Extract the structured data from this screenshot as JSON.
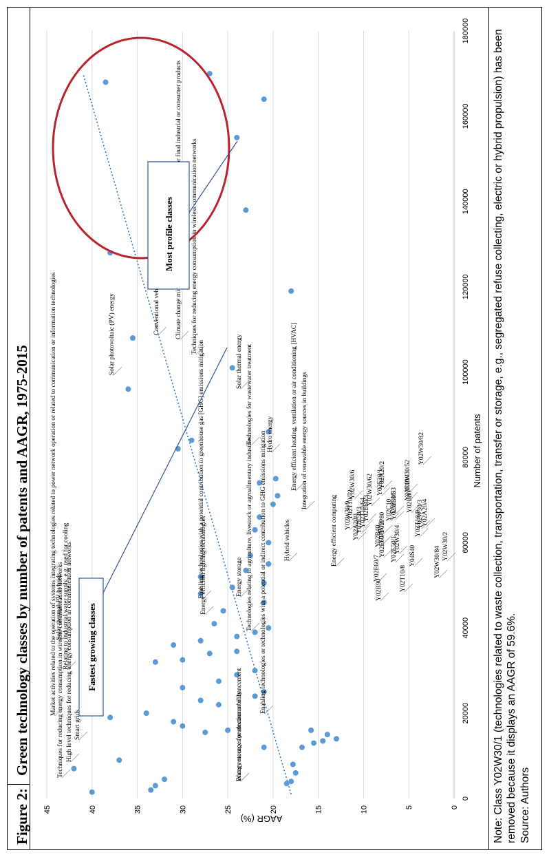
{
  "figure": {
    "number": "Figure 2:",
    "title": "Green technology classes by number of patents and AAGR, 1975-2015",
    "note": "Note: Class Y02W30/1 (technologies related to waste collection, transportation, transfer or storage, e.g., segregated refuse collecting, electric or hybrid propulsion) has been removed because it displays an AAGR of 59.6%.",
    "source": "Source: Authors"
  },
  "chart_data": {
    "type": "scatter",
    "xlabel": "Number of patents",
    "ylabel": "AAGR (%)",
    "xlim": [
      0,
      180000
    ],
    "ylim": [
      0,
      45
    ],
    "xticks": [
      0,
      20000,
      40000,
      60000,
      80000,
      100000,
      120000,
      140000,
      160000,
      180000
    ],
    "yticks": [
      0,
      5,
      10,
      15,
      20,
      25,
      30,
      35,
      40,
      45
    ],
    "grid": "horizontal",
    "color": "#5b9bd5",
    "trendline": {
      "x0": 1000,
      "y0": 18,
      "x1": 170000,
      "y1": 41
    },
    "points": [
      {
        "x": 1500,
        "y": 40
      },
      {
        "x": 7000,
        "y": 42
      },
      {
        "x": 9000,
        "y": 37
      },
      {
        "x": 2000,
        "y": 33.5
      },
      {
        "x": 3000,
        "y": 33
      },
      {
        "x": 4500,
        "y": 32
      },
      {
        "x": 3500,
        "y": 18.5
      },
      {
        "x": 4000,
        "y": 18
      },
      {
        "x": 6000,
        "y": 17.5
      },
      {
        "x": 8000,
        "y": 17.8
      },
      {
        "x": 12000,
        "y": 16.8
      },
      {
        "x": 13000,
        "y": 15.5
      },
      {
        "x": 14000,
        "y": 13
      },
      {
        "x": 13500,
        "y": 14.5
      },
      {
        "x": 15000,
        "y": 14
      },
      {
        "x": 16000,
        "y": 15.8
      },
      {
        "x": 12000,
        "y": 21
      },
      {
        "x": 15500,
        "y": 27.5
      },
      {
        "x": 16000,
        "y": 25
      },
      {
        "x": 17000,
        "y": 30
      },
      {
        "x": 18000,
        "y": 31
      },
      {
        "x": 19000,
        "y": 38
      },
      {
        "x": 20000,
        "y": 34
      },
      {
        "x": 22000,
        "y": 26
      },
      {
        "x": 23000,
        "y": 28
      },
      {
        "x": 24000,
        "y": 22
      },
      {
        "x": 25000,
        "y": 21
      },
      {
        "x": 26000,
        "y": 30
      },
      {
        "x": 27500,
        "y": 26
      },
      {
        "x": 29000,
        "y": 24
      },
      {
        "x": 30000,
        "y": 22
      },
      {
        "x": 32000,
        "y": 33
      },
      {
        "x": 32500,
        "y": 30
      },
      {
        "x": 34000,
        "y": 27
      },
      {
        "x": 34500,
        "y": 24
      },
      {
        "x": 36000,
        "y": 31
      },
      {
        "x": 37000,
        "y": 28
      },
      {
        "x": 38000,
        "y": 24
      },
      {
        "x": 39000,
        "y": 22
      },
      {
        "x": 40000,
        "y": 20.5
      },
      {
        "x": 41000,
        "y": 26.5
      },
      {
        "x": 44000,
        "y": 25.5
      },
      {
        "x": 46000,
        "y": 21
      },
      {
        "x": 48000,
        "y": 28
      },
      {
        "x": 49500,
        "y": 24.5
      },
      {
        "x": 50500,
        "y": 21
      },
      {
        "x": 52000,
        "y": 28
      },
      {
        "x": 53500,
        "y": 23
      },
      {
        "x": 55000,
        "y": 20.5
      },
      {
        "x": 57000,
        "y": 22.5
      },
      {
        "x": 60000,
        "y": 20.5
      },
      {
        "x": 63000,
        "y": 22
      },
      {
        "x": 66000,
        "y": 21.5
      },
      {
        "x": 69000,
        "y": 20
      },
      {
        "x": 71000,
        "y": 19.5
      },
      {
        "x": 74000,
        "y": 21.5
      },
      {
        "x": 75000,
        "y": 19.7
      },
      {
        "x": 82000,
        "y": 30.5
      },
      {
        "x": 84000,
        "y": 29
      },
      {
        "x": 86000,
        "y": 20.5
      },
      {
        "x": 96000,
        "y": 36
      },
      {
        "x": 101000,
        "y": 24.5
      },
      {
        "x": 108000,
        "y": 35.5
      },
      {
        "x": 119000,
        "y": 18
      },
      {
        "x": 128000,
        "y": 38
      },
      {
        "x": 138000,
        "y": 23
      },
      {
        "x": 155000,
        "y": 24
      },
      {
        "x": 164000,
        "y": 21
      },
      {
        "x": 168000,
        "y": 38.5
      },
      {
        "x": 170000,
        "y": 27
      }
    ],
    "labels": [
      {
        "text": "Techniques for reducing energy consumption in wireline communication networks"
      },
      {
        "text": "High level techniques for reducing energy consumption in communication networks"
      },
      {
        "text": "Smart grids"
      },
      {
        "text": "Market activities related to the operation of systems integrating technologies related to power network operation or related to communication or information technologies"
      },
      {
        "text": "Relating to industrial water supply, e.g. used for cooling"
      },
      {
        "text": "Solar thermal-PV hybrids"
      },
      {
        "text": "Y02W30/2"
      },
      {
        "text": "Y02W30/84"
      },
      {
        "text": "Y02T10/8"
      },
      {
        "text": "Y02T10/0"
      },
      {
        "text": "Y02W30/3"
      },
      {
        "text": "Y02W30/52"
      },
      {
        "text": "Y02W30/82"
      },
      {
        "text": "Y02A20/4"
      },
      {
        "text": "Y04S40"
      },
      {
        "text": "Y02B80"
      },
      {
        "text": "Y02E10/1"
      },
      {
        "text": "Y02E60/7"
      },
      {
        "text": "Y02B90"
      },
      {
        "text": "Y02B40"
      },
      {
        "text": "Y02E60/5"
      },
      {
        "text": "Y02P80"
      },
      {
        "text": "Y02E50/1"
      },
      {
        "text": "Y02W30/4"
      },
      {
        "text": "Y02B70"
      },
      {
        "text": "Y02C10"
      },
      {
        "text": "Y02E10/3"
      },
      {
        "text": "Y02W30/5"
      },
      {
        "text": "Y02A20/2"
      },
      {
        "text": "Y02E20/1"
      },
      {
        "text": "Y02E60/3"
      },
      {
        "text": "Y02T10/64"
      },
      {
        "text": "Y02E50/3"
      },
      {
        "text": "Y02A20/1"
      },
      {
        "text": "Y02T10/72"
      },
      {
        "text": "Y02W30/62"
      },
      {
        "text": "Y02W30/9"
      },
      {
        "text": "Y02W30/6"
      },
      {
        "text": "Hybrid vehicles"
      },
      {
        "text": "Energy efficient computing"
      },
      {
        "text": "Hydro energy"
      },
      {
        "text": "Energy efficient heating, ventilation or air conditioning [HVAC]"
      },
      {
        "text": "Integration of renewable energy sources in buildings"
      },
      {
        "text": "Enabling technologies or technologies with a potential or indirect contribution to GHG emissions mitigation"
      },
      {
        "text": "Technologies relating to agriculture, livestock or agroalimentary industries"
      },
      {
        "text": "Energy storage"
      },
      {
        "text": "Energy efficient lighting technologies"
      },
      {
        "text": "Enabling technologies with a potential contribution to greenhouse gas [GHG] emissions mitigation"
      },
      {
        "text": "Technologies for wastewater treatment"
      },
      {
        "text": "Solar thermal energy"
      },
      {
        "text": "Techniques for reducing energy consumption in wireless communication networks"
      },
      {
        "text": "Conventional vehicles (ICE)"
      },
      {
        "text": "Climate change mitigation technologies in the production process for final industrial or consumer products"
      },
      {
        "text": "Solar photovoltaic (PV) energy"
      },
      {
        "text": "Water resources protection or enhancement"
      },
      {
        "text": "Energy storage for electromobility"
      }
    ],
    "callouts": {
      "fastest": "Fastest growing classes",
      "most": "Most profile classes"
    },
    "highlight_color": "#b8232f"
  }
}
